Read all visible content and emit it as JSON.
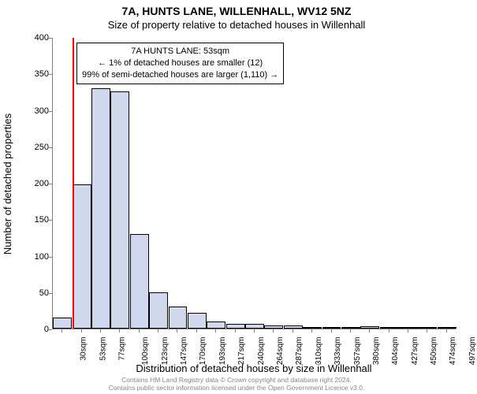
{
  "chart": {
    "type": "histogram",
    "title": "7A, HUNTS LANE, WILLENHALL, WV12 5NZ",
    "subtitle": "Size of property relative to detached houses in Willenhall",
    "xlabel": "Distribution of detached houses by size in Willenhall",
    "ylabel": "Number of detached properties",
    "ylim": [
      0,
      400
    ],
    "yticks": [
      0,
      50,
      100,
      150,
      200,
      250,
      300,
      350,
      400
    ],
    "xticks": [
      "30sqm",
      "53sqm",
      "77sqm",
      "100sqm",
      "123sqm",
      "147sqm",
      "170sqm",
      "193sqm",
      "217sqm",
      "240sqm",
      "264sqm",
      "287sqm",
      "310sqm",
      "333sqm",
      "357sqm",
      "380sqm",
      "404sqm",
      "427sqm",
      "450sqm",
      "474sqm",
      "497sqm"
    ],
    "bars": [
      15,
      198,
      330,
      325,
      130,
      50,
      30,
      22,
      10,
      6,
      6,
      4,
      4,
      2,
      2,
      2,
      3,
      2,
      2,
      2,
      2
    ],
    "bar_fill": "#cfd8ec",
    "bar_stroke": "#000000",
    "marker_bin_index": 1,
    "marker_color": "#ff0000",
    "background": "#ffffff",
    "axis_color": "#808080",
    "annotation": {
      "line1": "7A HUNTS LANE: 53sqm",
      "line2": "← 1% of detached houses are smaller (12)",
      "line3": "99% of semi-detached houses are larger (1,110) →"
    }
  },
  "footer": {
    "line1": "Contains HM Land Registry data © Crown copyright and database right 2024.",
    "line2": "Contains public sector information licensed under the Open Government Licence v3.0."
  }
}
